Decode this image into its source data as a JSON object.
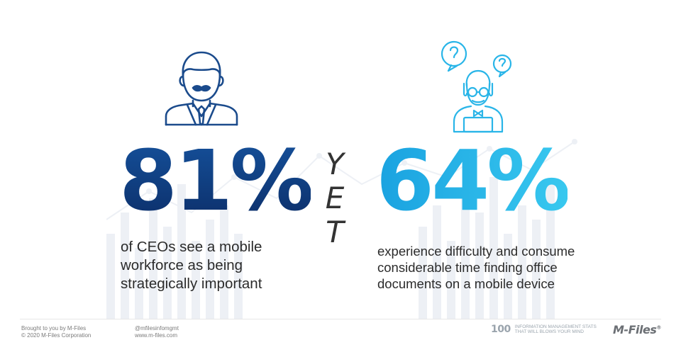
{
  "left": {
    "icon": "businessman-icon",
    "stat": "81%",
    "lines": [
      "of CEOs see a mobile",
      "workforce as being",
      "strategically important"
    ],
    "color": "#0f3f82"
  },
  "connector": {
    "letters": [
      "Y",
      "E",
      "T"
    ]
  },
  "right": {
    "icon": "confused-worker-icon",
    "stat": "64%",
    "lines": [
      "experience difficulty and consume",
      "considerable time finding office",
      "documents on a mobile device"
    ],
    "color": "#29b5e8"
  },
  "footer": {
    "brought_by": "Brought to you by M-Files",
    "copyright": "© 2020 M-Files Corporation",
    "handle": "@mfilesinfomgmt",
    "website": "www.m-files.com",
    "badge_number": "100",
    "badge_lines": [
      "INFORMATION MANAGEMENT STATS",
      "THAT WILL BLOWS YOUR MIND"
    ],
    "logo": "M-Files",
    "logo_mark": "®"
  }
}
